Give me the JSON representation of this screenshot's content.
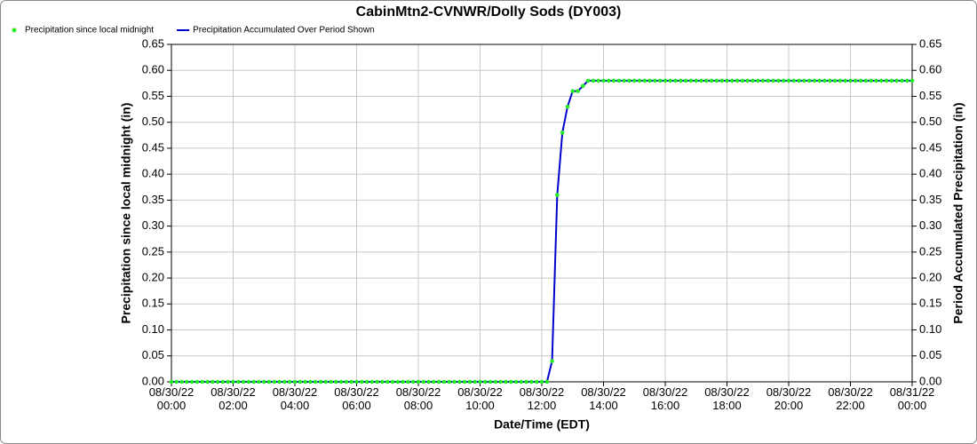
{
  "chart_data": {
    "type": "line",
    "title": "CabinMtn2-CVNWR/Dolly Sods (DY003)",
    "x_label": "Date/Time (EDT)",
    "y_label": "Precipitation since local midnight (in)",
    "y2_label": "Period Accumulated Precipitation (in)",
    "grid": true,
    "legend": "top-left",
    "x": [
      "08/30/22 00:00",
      "08/30/22 00:10",
      "08/30/22 00:20",
      "08/30/22 00:30",
      "08/30/22 00:40",
      "08/30/22 00:50",
      "08/30/22 01:00",
      "08/30/22 01:10",
      "08/30/22 01:20",
      "08/30/22 01:30",
      "08/30/22 01:40",
      "08/30/22 01:50",
      "08/30/22 02:00",
      "08/30/22 02:10",
      "08/30/22 02:20",
      "08/30/22 02:30",
      "08/30/22 02:40",
      "08/30/22 02:50",
      "08/30/22 03:00",
      "08/30/22 03:10",
      "08/30/22 03:20",
      "08/30/22 03:30",
      "08/30/22 03:40",
      "08/30/22 03:50",
      "08/30/22 04:00",
      "08/30/22 04:10",
      "08/30/22 04:20",
      "08/30/22 04:30",
      "08/30/22 04:40",
      "08/30/22 04:50",
      "08/30/22 05:00",
      "08/30/22 05:10",
      "08/30/22 05:20",
      "08/30/22 05:30",
      "08/30/22 05:40",
      "08/30/22 05:50",
      "08/30/22 06:00",
      "08/30/22 06:10",
      "08/30/22 06:20",
      "08/30/22 06:30",
      "08/30/22 06:40",
      "08/30/22 06:50",
      "08/30/22 07:00",
      "08/30/22 07:10",
      "08/30/22 07:20",
      "08/30/22 07:30",
      "08/30/22 07:40",
      "08/30/22 07:50",
      "08/30/22 08:00",
      "08/30/22 08:10",
      "08/30/22 08:20",
      "08/30/22 08:30",
      "08/30/22 08:40",
      "08/30/22 08:50",
      "08/30/22 09:00",
      "08/30/22 09:10",
      "08/30/22 09:20",
      "08/30/22 09:30",
      "08/30/22 09:40",
      "08/30/22 09:50",
      "08/30/22 10:00",
      "08/30/22 10:10",
      "08/30/22 10:20",
      "08/30/22 10:30",
      "08/30/22 10:40",
      "08/30/22 10:50",
      "08/30/22 11:00",
      "08/30/22 11:10",
      "08/30/22 11:20",
      "08/30/22 11:30",
      "08/30/22 11:40",
      "08/30/22 11:50",
      "08/30/22 12:00",
      "08/30/22 12:10",
      "08/30/22 12:20",
      "08/30/22 12:30",
      "08/30/22 12:40",
      "08/30/22 12:50",
      "08/30/22 13:00",
      "08/30/22 13:10",
      "08/30/22 13:20",
      "08/30/22 13:30",
      "08/30/22 13:40",
      "08/30/22 13:50",
      "08/30/22 14:00",
      "08/30/22 14:10",
      "08/30/22 14:20",
      "08/30/22 14:30",
      "08/30/22 14:40",
      "08/30/22 14:50",
      "08/30/22 15:00",
      "08/30/22 15:10",
      "08/30/22 15:20",
      "08/30/22 15:30",
      "08/30/22 15:40",
      "08/30/22 15:50",
      "08/30/22 16:00",
      "08/30/22 16:10",
      "08/30/22 16:20",
      "08/30/22 16:30",
      "08/30/22 16:40",
      "08/30/22 16:50",
      "08/30/22 17:00",
      "08/30/22 17:10",
      "08/30/22 17:20",
      "08/30/22 17:30",
      "08/30/22 17:40",
      "08/30/22 17:50",
      "08/30/22 18:00",
      "08/30/22 18:10",
      "08/30/22 18:20",
      "08/30/22 18:30",
      "08/30/22 18:40",
      "08/30/22 18:50",
      "08/30/22 19:00",
      "08/30/22 19:10",
      "08/30/22 19:20",
      "08/30/22 19:30",
      "08/30/22 19:40",
      "08/30/22 19:50",
      "08/30/22 20:00",
      "08/30/22 20:10",
      "08/30/22 20:20",
      "08/30/22 20:30",
      "08/30/22 20:40",
      "08/30/22 20:50",
      "08/30/22 21:00",
      "08/30/22 21:10",
      "08/30/22 21:20",
      "08/30/22 21:30",
      "08/30/22 21:40",
      "08/30/22 21:50",
      "08/30/22 22:00",
      "08/30/22 22:10",
      "08/30/22 22:20",
      "08/30/22 22:30",
      "08/30/22 22:40",
      "08/30/22 22:50",
      "08/30/22 23:00",
      "08/30/22 23:10",
      "08/30/22 23:20",
      "08/30/22 23:30",
      "08/30/22 23:40",
      "08/30/22 23:50",
      "08/31/22 00:00"
    ],
    "series": [
      {
        "name": "Precipitation since local midnight",
        "color": "#22ee22",
        "style": "points",
        "values": [
          0,
          0,
          0,
          0,
          0,
          0,
          0,
          0,
          0,
          0,
          0,
          0,
          0,
          0,
          0,
          0,
          0,
          0,
          0,
          0,
          0,
          0,
          0,
          0,
          0,
          0,
          0,
          0,
          0,
          0,
          0,
          0,
          0,
          0,
          0,
          0,
          0,
          0,
          0,
          0,
          0,
          0,
          0,
          0,
          0,
          0,
          0,
          0,
          0,
          0,
          0,
          0,
          0,
          0,
          0,
          0,
          0,
          0,
          0,
          0,
          0,
          0,
          0,
          0,
          0,
          0,
          0,
          0,
          0,
          0,
          0,
          0,
          0,
          0,
          0.04,
          0.36,
          0.48,
          0.53,
          0.56,
          0.56,
          0.57,
          0.58,
          0.58,
          0.58,
          0.58,
          0.58,
          0.58,
          0.58,
          0.58,
          0.58,
          0.58,
          0.58,
          0.58,
          0.58,
          0.58,
          0.58,
          0.58,
          0.58,
          0.58,
          0.58,
          0.58,
          0.58,
          0.58,
          0.58,
          0.58,
          0.58,
          0.58,
          0.58,
          0.58,
          0.58,
          0.58,
          0.58,
          0.58,
          0.58,
          0.58,
          0.58,
          0.58,
          0.58,
          0.58,
          0.58,
          0.58,
          0.58,
          0.58,
          0.58,
          0.58,
          0.58,
          0.58,
          0.58,
          0.58,
          0.58,
          0.58,
          0.58,
          0.58,
          0.58,
          0.58,
          0.58,
          0.58,
          0.58,
          0.58,
          0.58,
          0.58,
          0.58,
          0.58,
          0.58,
          0.58
        ]
      },
      {
        "name": "Precipitation Accumulated Over Period Shown",
        "color": "#0000cc",
        "style": "line",
        "axis": "y2",
        "values": [
          0,
          0,
          0,
          0,
          0,
          0,
          0,
          0,
          0,
          0,
          0,
          0,
          0,
          0,
          0,
          0,
          0,
          0,
          0,
          0,
          0,
          0,
          0,
          0,
          0,
          0,
          0,
          0,
          0,
          0,
          0,
          0,
          0,
          0,
          0,
          0,
          0,
          0,
          0,
          0,
          0,
          0,
          0,
          0,
          0,
          0,
          0,
          0,
          0,
          0,
          0,
          0,
          0,
          0,
          0,
          0,
          0,
          0,
          0,
          0,
          0,
          0,
          0,
          0,
          0,
          0,
          0,
          0,
          0,
          0,
          0,
          0,
          0,
          0,
          0.04,
          0.36,
          0.48,
          0.53,
          0.56,
          0.56,
          0.57,
          0.58,
          0.58,
          0.58,
          0.58,
          0.58,
          0.58,
          0.58,
          0.58,
          0.58,
          0.58,
          0.58,
          0.58,
          0.58,
          0.58,
          0.58,
          0.58,
          0.58,
          0.58,
          0.58,
          0.58,
          0.58,
          0.58,
          0.58,
          0.58,
          0.58,
          0.58,
          0.58,
          0.58,
          0.58,
          0.58,
          0.58,
          0.58,
          0.58,
          0.58,
          0.58,
          0.58,
          0.58,
          0.58,
          0.58,
          0.58,
          0.58,
          0.58,
          0.58,
          0.58,
          0.58,
          0.58,
          0.58,
          0.58,
          0.58,
          0.58,
          0.58,
          0.58,
          0.58,
          0.58,
          0.58,
          0.58,
          0.58,
          0.58,
          0.58,
          0.58,
          0.58,
          0.58,
          0.58,
          0.58
        ]
      }
    ],
    "xlim": [
      "08/30/22 00:00",
      "08/31/22 00:00"
    ],
    "xticks": [
      "08/30/22 00:00",
      "08/30/22 02:00",
      "08/30/22 04:00",
      "08/30/22 06:00",
      "08/30/22 08:00",
      "08/30/22 10:00",
      "08/30/22 12:00",
      "08/30/22 14:00",
      "08/30/22 16:00",
      "08/30/22 18:00",
      "08/30/22 20:00",
      "08/30/22 22:00",
      "08/31/22 00:00"
    ],
    "ylim": [
      0,
      0.65
    ],
    "yticks": [
      {
        "value": 0,
        "label": "0.00"
      },
      {
        "value": 0.05,
        "label": "0.05"
      },
      {
        "value": 0.1,
        "label": "0.10"
      },
      {
        "value": 0.15,
        "label": "0.15"
      },
      {
        "value": 0.2,
        "label": "0.20"
      },
      {
        "value": 0.25,
        "label": "0.25"
      },
      {
        "value": 0.3,
        "label": "0.30"
      },
      {
        "value": 0.35,
        "label": "0.35"
      },
      {
        "value": 0.4,
        "label": "0.40"
      },
      {
        "value": 0.45,
        "label": "0.45"
      },
      {
        "value": 0.5,
        "label": "0.50"
      },
      {
        "value": 0.55,
        "label": "0.55"
      },
      {
        "value": 0.6,
        "label": "0.60"
      },
      {
        "value": 0.65,
        "label": "0.65"
      }
    ],
    "y2lim": [
      0,
      0.65
    ],
    "y2ticks": [
      {
        "value": 0,
        "label": "0.00"
      },
      {
        "value": 0.05,
        "label": "0.05"
      },
      {
        "value": 0.1,
        "label": "0.10"
      },
      {
        "value": 0.15,
        "label": "0.15"
      },
      {
        "value": 0.2,
        "label": "0.20"
      },
      {
        "value": 0.25,
        "label": "0.25"
      },
      {
        "value": 0.3,
        "label": "0.30"
      },
      {
        "value": 0.35,
        "label": "0.35"
      },
      {
        "value": 0.4,
        "label": "0.40"
      },
      {
        "value": 0.45,
        "label": "0.45"
      },
      {
        "value": 0.5,
        "label": "0.50"
      },
      {
        "value": 0.55,
        "label": "0.55"
      },
      {
        "value": 0.6,
        "label": "0.60"
      },
      {
        "value": 0.65,
        "label": "0.65"
      }
    ]
  }
}
